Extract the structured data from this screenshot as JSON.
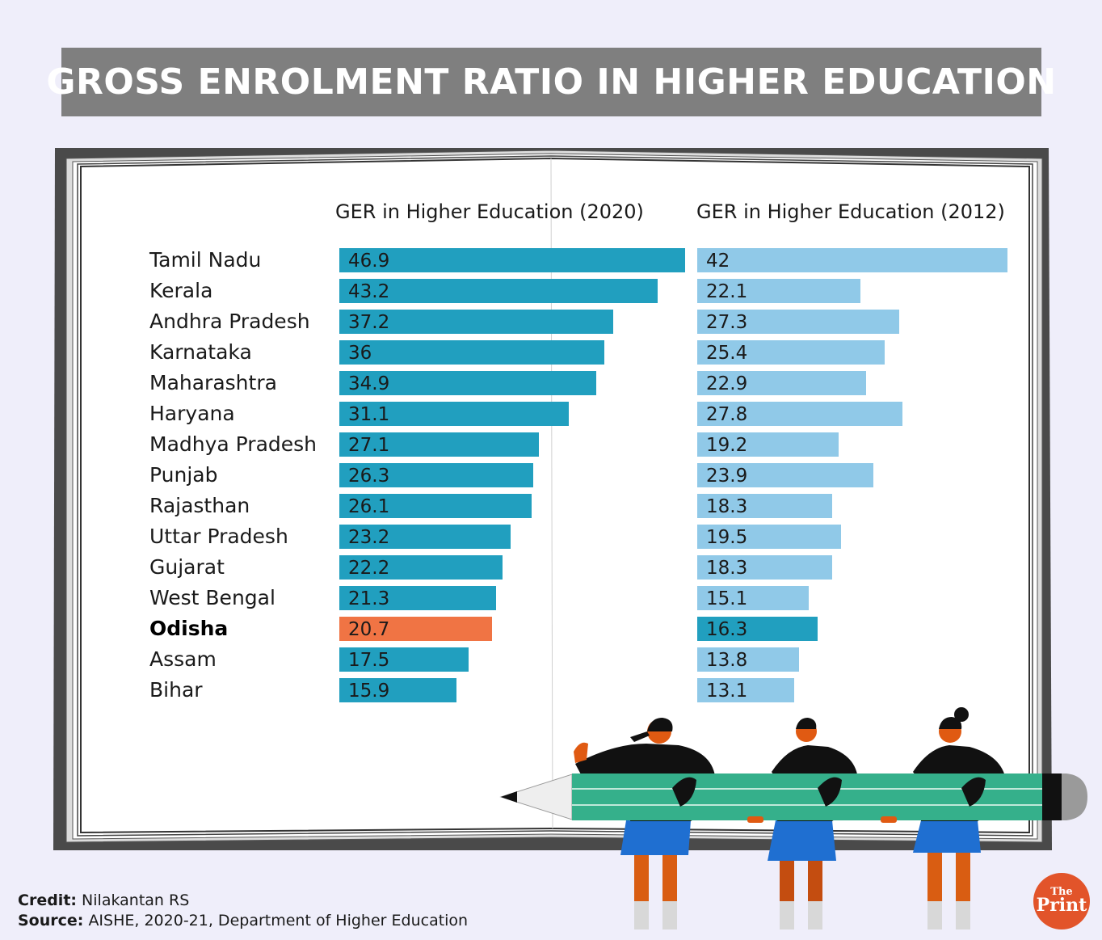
{
  "title": "GROSS ENROLMENT RATIO IN HIGHER EDUCATION",
  "chart_data": {
    "type": "bar",
    "orientation": "horizontal",
    "categories": [
      "Tamil Nadu",
      "Kerala",
      "Andhra Pradesh",
      "Karnataka",
      "Maharashtra",
      "Haryana",
      "Madhya Pradesh",
      "Punjab",
      "Rajasthan",
      "Uttar Pradesh",
      "Gujarat",
      "West Bengal",
      "Odisha",
      "Assam",
      "Bihar"
    ],
    "highlight": "Odisha",
    "series": [
      {
        "name": "GER in Higher Education (2020)",
        "color": "#219fbf",
        "highlight_color": "#f07444",
        "values": [
          46.9,
          43.2,
          37.2,
          36,
          34.9,
          31.1,
          27.1,
          26.3,
          26.1,
          23.2,
          22.2,
          21.3,
          20.7,
          17.5,
          15.9
        ],
        "labels": [
          "46.9",
          "43.2",
          "37.2",
          "36",
          "34.9",
          "31.1",
          "27.1",
          "26.3",
          "26.1",
          "23.2",
          "22.2",
          "21.3",
          "20.7",
          "17.5",
          "15.9"
        ]
      },
      {
        "name": "GER in Higher Education (2012)",
        "color": "#90c9e8",
        "highlight_color": "#219fbf",
        "values": [
          42,
          22.1,
          27.3,
          25.4,
          22.9,
          27.8,
          19.2,
          23.9,
          18.3,
          19.5,
          18.3,
          15.1,
          16.3,
          13.8,
          13.1
        ],
        "labels": [
          "42",
          "22.1",
          "27.3",
          "25.4",
          "22.9",
          "27.8",
          "19.2",
          "23.9",
          "18.3",
          "19.5",
          "18.3",
          "15.1",
          "16.3",
          "13.8",
          "13.1"
        ]
      }
    ]
  },
  "credit": {
    "label": "Credit:",
    "value": "Nilakantan RS"
  },
  "source": {
    "label": "Source:",
    "value": "AISHE, 2020-21, Department of Higher Education"
  },
  "logo": {
    "the": "The",
    "print": "Print"
  },
  "colors": {
    "background": "#efeefa",
    "banner": "#7f7f7f",
    "book_cover": "#4a4a4a",
    "pencil": "#35b08b",
    "uniform": "#1f6fd1",
    "legs": "#d95d12"
  }
}
